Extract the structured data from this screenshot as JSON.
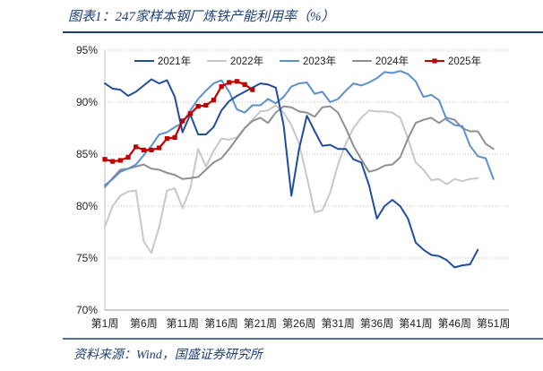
{
  "header": {
    "title": "图表1：247家样本钢厂炼铁产能利用率（%）"
  },
  "footer": {
    "source": "资料来源：Wind，国盛证券研究所"
  },
  "chart_data": {
    "type": "line",
    "title": "图表1：247家样本钢厂炼铁产能利用率（%）",
    "xlabel": "",
    "ylabel": "",
    "ylim": [
      70,
      95
    ],
    "yticks": [
      70,
      75,
      80,
      85,
      90,
      95
    ],
    "ytick_labels": [
      "70%",
      "75%",
      "80%",
      "85%",
      "90%",
      "95%"
    ],
    "xlim": [
      1,
      53
    ],
    "xticks": [
      1,
      6,
      11,
      16,
      21,
      26,
      31,
      36,
      41,
      46,
      51
    ],
    "xtick_labels": [
      "第1周",
      "第6周",
      "第11周",
      "第16周",
      "第21周",
      "第26周",
      "第31周",
      "第36周",
      "第41周",
      "第46周",
      "第51周"
    ],
    "legend_position": "top",
    "series": [
      {
        "name": "2021年",
        "color": "#1f4e9c",
        "markers": false,
        "x": [
          1,
          2,
          3,
          4,
          5,
          6,
          7,
          8,
          9,
          10,
          11,
          12,
          13,
          14,
          15,
          16,
          17,
          18,
          19,
          20,
          21,
          22,
          23,
          24,
          25,
          26,
          27,
          28,
          29,
          30,
          31,
          32,
          33,
          34,
          35,
          36,
          37,
          38,
          39,
          40,
          41,
          42,
          43,
          44,
          45,
          46,
          47,
          48,
          49,
          50,
          51,
          52
        ],
        "values": [
          91.8,
          91.3,
          91.2,
          90.6,
          91.0,
          91.6,
          92.2,
          91.8,
          92.1,
          90.5,
          87.1,
          88.8,
          86.9,
          86.9,
          87.6,
          89.2,
          90.1,
          90.6,
          91.0,
          91.4,
          91.8,
          91.7,
          91.4,
          87.8,
          81.0,
          85.5,
          88.7,
          87.2,
          85.8,
          85.9,
          85.5,
          85.5,
          84.5,
          84.2,
          82.0,
          78.8,
          80.0,
          80.6,
          80.0,
          78.8,
          76.5,
          75.8,
          75.3,
          75.2,
          74.8,
          74.1,
          74.3,
          74.4,
          75.8,
          null,
          null,
          null
        ]
      },
      {
        "name": "2022年",
        "color": "#c8c8c8",
        "markers": false,
        "x": [
          1,
          2,
          3,
          4,
          5,
          6,
          7,
          8,
          9,
          10,
          11,
          12,
          13,
          14,
          15,
          16,
          17,
          18,
          19,
          20,
          21,
          22,
          23,
          24,
          25,
          26,
          27,
          28,
          29,
          30,
          31,
          32,
          33,
          34,
          35,
          36,
          37,
          38,
          39,
          40,
          41,
          42,
          43,
          44,
          45,
          46,
          47,
          48,
          49,
          50,
          51,
          52
        ],
        "values": [
          78.0,
          80.0,
          81.0,
          81.4,
          81.5,
          76.6,
          75.5,
          78.0,
          81.5,
          81.7,
          79.8,
          81.7,
          85.5,
          83.8,
          85.3,
          86.5,
          86.4,
          86.6,
          87.5,
          88.3,
          89.1,
          89.2,
          89.7,
          89.0,
          87.8,
          86.0,
          82.8,
          79.4,
          79.6,
          81.3,
          84.0,
          86.0,
          87.5,
          88.5,
          89.2,
          89.1,
          89.1,
          89.0,
          88.5,
          86.5,
          84.2,
          83.5,
          82.5,
          82.6,
          82.1,
          82.6,
          82.4,
          82.6,
          82.7,
          null,
          null,
          null
        ]
      },
      {
        "name": "2023年",
        "color": "#5b8fd0",
        "markers": false,
        "x": [
          1,
          2,
          3,
          4,
          5,
          6,
          7,
          8,
          9,
          10,
          11,
          12,
          13,
          14,
          15,
          16,
          17,
          18,
          19,
          20,
          21,
          22,
          23,
          24,
          25,
          26,
          27,
          28,
          29,
          30,
          31,
          32,
          33,
          34,
          35,
          36,
          37,
          38,
          39,
          40,
          41,
          42,
          43,
          44,
          45,
          46,
          47,
          48,
          49,
          50,
          51,
          52
        ],
        "values": [
          82.0,
          82.6,
          83.3,
          83.6,
          84.0,
          84.9,
          85.8,
          86.9,
          87.1,
          87.6,
          88.0,
          89.2,
          90.3,
          91.1,
          91.8,
          92.1,
          91.0,
          89.3,
          89.0,
          89.7,
          89.7,
          90.3,
          89.9,
          90.5,
          91.5,
          91.8,
          91.9,
          90.8,
          91.0,
          90.0,
          90.3,
          91.1,
          91.8,
          91.6,
          91.9,
          92.3,
          92.9,
          92.8,
          93.0,
          92.7,
          92.0,
          90.5,
          90.7,
          90.2,
          88.3,
          87.8,
          87.7,
          85.8,
          84.8,
          84.6,
          82.6,
          null
        ]
      },
      {
        "name": "2024年",
        "color": "#8f8f8f",
        "markers": false,
        "x": [
          1,
          2,
          3,
          4,
          5,
          6,
          7,
          8,
          9,
          10,
          11,
          12,
          13,
          14,
          15,
          16,
          17,
          18,
          19,
          20,
          21,
          22,
          23,
          24,
          25,
          26,
          27,
          28,
          29,
          30,
          31,
          32,
          33,
          34,
          35,
          36,
          37,
          38,
          39,
          40,
          41,
          42,
          43,
          44,
          45,
          46,
          47,
          48,
          49,
          50,
          51,
          52
        ],
        "values": [
          81.8,
          82.7,
          83.5,
          83.6,
          83.8,
          84.0,
          83.6,
          83.5,
          83.2,
          83.0,
          82.6,
          82.7,
          82.8,
          83.5,
          84.2,
          84.6,
          85.5,
          86.5,
          87.5,
          88.2,
          88.5,
          88.0,
          89.0,
          89.6,
          89.5,
          89.1,
          89.0,
          88.6,
          89.5,
          89.6,
          89.0,
          87.5,
          85.8,
          84.5,
          83.3,
          83.5,
          83.9,
          84.0,
          84.7,
          86.5,
          88.0,
          88.3,
          88.5,
          88.0,
          88.5,
          88.3,
          87.5,
          87.2,
          87.2,
          86.0,
          85.5,
          null
        ]
      },
      {
        "name": "2025年",
        "color": "#c00000",
        "markers": true,
        "x": [
          1,
          2,
          3,
          4,
          5,
          6,
          7,
          8,
          9,
          10,
          11,
          12,
          13,
          14,
          15,
          16,
          17,
          18,
          19,
          20,
          21
        ],
        "values": [
          84.5,
          84.3,
          84.4,
          84.7,
          85.7,
          85.4,
          85.4,
          85.6,
          86.5,
          86.6,
          88.2,
          88.9,
          89.6,
          89.7,
          90.2,
          91.5,
          91.9,
          92.0,
          91.7,
          91.2,
          null
        ]
      }
    ]
  }
}
